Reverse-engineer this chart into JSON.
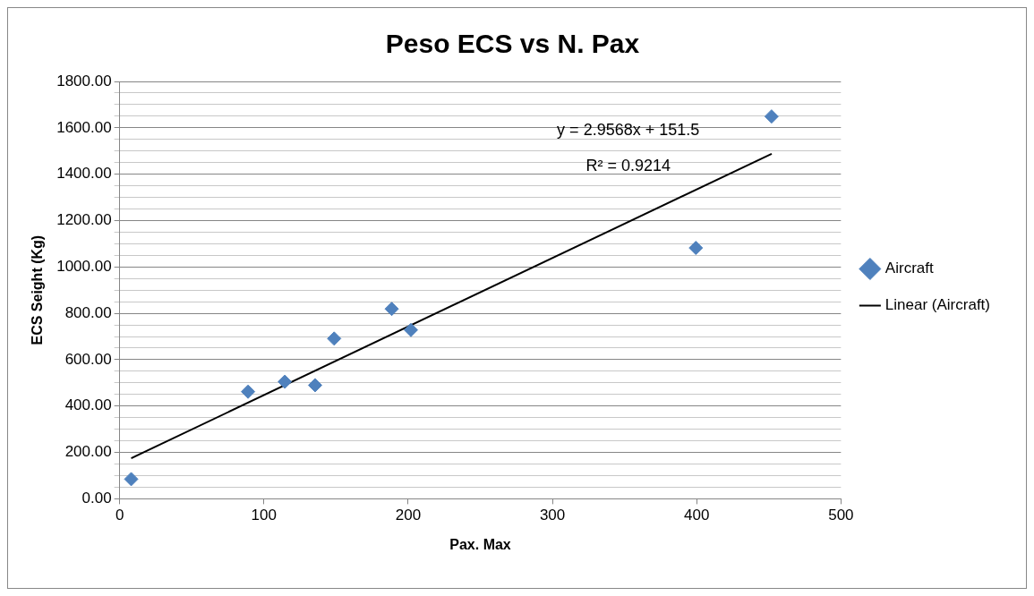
{
  "chart_data": {
    "type": "scatter",
    "title": "Peso ECS vs N. Pax",
    "xlabel": "Pax. Max",
    "ylabel": "ECS Seight (Kg)",
    "series": [
      {
        "name": "Aircraft",
        "color": "#4f81bd",
        "marker": "diamond",
        "x": [
          8,
          89,
          114.5,
          135.5,
          148.7,
          188.6,
          201.9,
          399.4,
          451.9
        ],
        "values": [
          85,
          462,
          505,
          490,
          691,
          819,
          728,
          1082,
          1649
        ]
      },
      {
        "name": "Linear (Aircraft)",
        "color": "#000000",
        "type": "line",
        "marker": "none",
        "x": [
          8,
          452
        ],
        "values": [
          175,
          1488
        ]
      }
    ],
    "xlim": [
      0,
      500
    ],
    "xticks": [
      0,
      100,
      200,
      300,
      400,
      500
    ],
    "ylim": [
      0,
      1800
    ],
    "yticks": [
      {
        "value": 0,
        "label": "0.00"
      },
      {
        "value": 50,
        "label": null
      },
      {
        "value": 100,
        "label": null
      },
      {
        "value": 150,
        "label": null
      },
      {
        "value": 200,
        "label": "200.00"
      },
      {
        "value": 250,
        "label": null
      },
      {
        "value": 300,
        "label": null
      },
      {
        "value": 350,
        "label": null
      },
      {
        "value": 400,
        "label": "400.00"
      },
      {
        "value": 450,
        "label": null
      },
      {
        "value": 500,
        "label": null
      },
      {
        "value": 550,
        "label": null
      },
      {
        "value": 600,
        "label": "600.00"
      },
      {
        "value": 650,
        "label": null
      },
      {
        "value": 700,
        "label": null
      },
      {
        "value": 750,
        "label": null
      },
      {
        "value": 800,
        "label": "800.00"
      },
      {
        "value": 850,
        "label": null
      },
      {
        "value": 900,
        "label": null
      },
      {
        "value": 950,
        "label": null
      },
      {
        "value": 1000,
        "label": "1000.00"
      },
      {
        "value": 1050,
        "label": null
      },
      {
        "value": 1100,
        "label": null
      },
      {
        "value": 1150,
        "label": null
      },
      {
        "value": 1200,
        "label": "1200.00"
      },
      {
        "value": 1250,
        "label": null
      },
      {
        "value": 1300,
        "label": null
      },
      {
        "value": 1350,
        "label": null
      },
      {
        "value": 1400,
        "label": "1400.00"
      },
      {
        "value": 1450,
        "label": null
      },
      {
        "value": 1500,
        "label": null
      },
      {
        "value": 1550,
        "label": null
      },
      {
        "value": 1600,
        "label": "1600.00"
      },
      {
        "value": 1650,
        "label": null
      },
      {
        "value": 1700,
        "label": null
      },
      {
        "value": 1750,
        "label": null
      },
      {
        "value": 1800,
        "label": "1800.00"
      }
    ],
    "grid": "y",
    "legend": "right",
    "annotations": [
      "y = 2.9568x + 151.5",
      "R² = 0.9214"
    ]
  }
}
